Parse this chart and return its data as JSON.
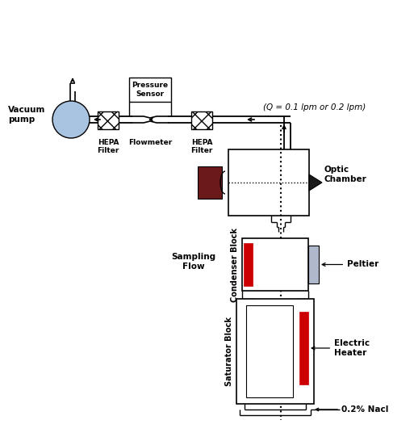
{
  "bg_color": "#ffffff",
  "pump_color": "#a8c4e0",
  "laser_color": "#6b1a1a",
  "detector_color": "#1a1a1a",
  "peltier_color": "#b0b8cc",
  "heater_color": "#cc0000",
  "line_color": "#000000",
  "label_color": "#000000",
  "annotations": {
    "vacuum_pump": "Vacuum\npump",
    "hepa1": "HEPA\nFilter",
    "hepa2": "HEPA\nFilter",
    "flowmeter": "Flowmeter",
    "pressure_sensor": "Pressure\nSensor",
    "flow_label": "(Q = 0.1 lpm or 0.2 lpm)",
    "optic_chamber": "Optic\nChamber",
    "sampling_flow": "Sampling\nFlow",
    "condenser_block": "Condenser Block",
    "saturator_block": "Saturator Block",
    "peltier": "Peltier",
    "electric_heater": "Electric\nHeater",
    "nacl": "0.2% Nacl"
  }
}
